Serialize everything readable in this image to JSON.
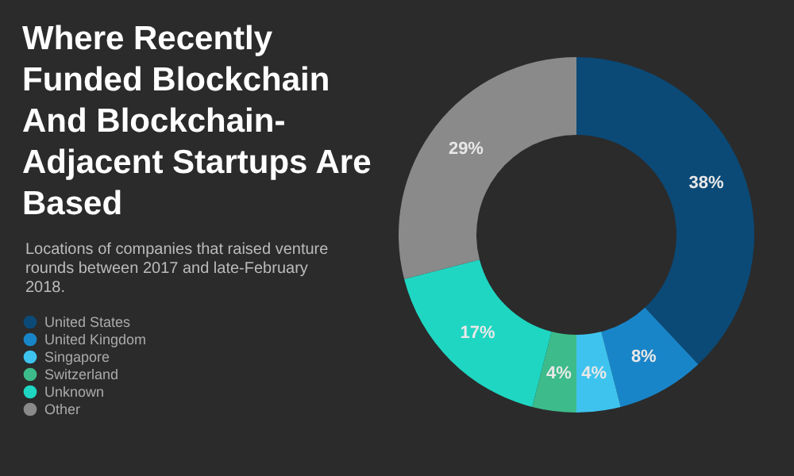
{
  "chart_data": {
    "type": "donut",
    "title": "Where Recently Funded Blockchain And Blockchain-Adjacent Startups Are Based",
    "subtitle": "Locations of companies that raised venture rounds between 2017 and late-February 2018.",
    "categories": [
      "United States",
      "United Kingdom",
      "Singapore",
      "Switzerland",
      "Unknown",
      "Other"
    ],
    "values": [
      38,
      8,
      4,
      4,
      17,
      29
    ],
    "value_labels": [
      "38%",
      "8%",
      "4%",
      "4%",
      "17%",
      "29%"
    ],
    "colors": [
      "#0b4a77",
      "#1985c9",
      "#3ec3ee",
      "#3dbb8a",
      "#1fd6c2",
      "#8a8a8a"
    ],
    "legend": "bottom left"
  }
}
